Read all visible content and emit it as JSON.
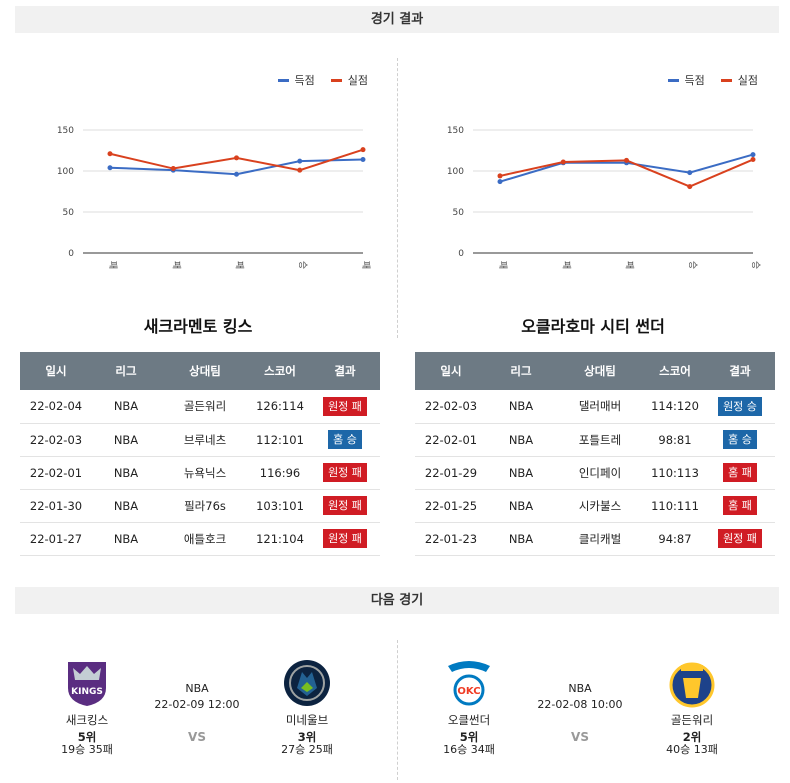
{
  "sections": {
    "results_title": "경기 결과",
    "next_title": "다음 경기"
  },
  "legend": {
    "scored": "득점",
    "allowed": "실점"
  },
  "colors": {
    "scored": "#3b6cc4",
    "allowed": "#d9411e",
    "win_badge": "#1d67a8",
    "loss_badge": "#d01c24",
    "header": "#6d7a84"
  },
  "table_headers": [
    "일시",
    "리그",
    "상대팀",
    "스코어",
    "결과"
  ],
  "left": {
    "team": "새크라멘토 킹스",
    "chart_data": {
      "type": "line",
      "categories": [
        "패",
        "패",
        "패",
        "승",
        "패"
      ],
      "series": [
        {
          "name": "득점",
          "values": [
            104,
            101,
            96,
            112,
            114
          ]
        },
        {
          "name": "실점",
          "values": [
            121,
            103,
            116,
            101,
            126
          ]
        }
      ],
      "yticks": [
        0,
        50,
        100,
        150
      ],
      "ylim": [
        0,
        150
      ]
    },
    "rows": [
      {
        "date": "22-02-04",
        "league": "NBA",
        "opponent": "골든워리",
        "score": "126:114",
        "result": "원정 패",
        "win": false
      },
      {
        "date": "22-02-03",
        "league": "NBA",
        "opponent": "브루네츠",
        "score": "112:101",
        "result": "홈 승",
        "win": true
      },
      {
        "date": "22-02-01",
        "league": "NBA",
        "opponent": "뉴욕닉스",
        "score": "116:96",
        "result": "원정 패",
        "win": false
      },
      {
        "date": "22-01-30",
        "league": "NBA",
        "opponent": "필라76s",
        "score": "103:101",
        "result": "원정 패",
        "win": false
      },
      {
        "date": "22-01-27",
        "league": "NBA",
        "opponent": "애틀호크",
        "score": "121:104",
        "result": "원정 패",
        "win": false
      }
    ]
  },
  "right": {
    "team": "오클라호마 시티 썬더",
    "chart_data": {
      "type": "line",
      "categories": [
        "패",
        "패",
        "패",
        "승",
        "승"
      ],
      "series": [
        {
          "name": "득점",
          "values": [
            87,
            110,
            110,
            98,
            120
          ]
        },
        {
          "name": "실점",
          "values": [
            94,
            111,
            113,
            81,
            114
          ]
        }
      ],
      "yticks": [
        0,
        50,
        100,
        150
      ],
      "ylim": [
        0,
        150
      ]
    },
    "rows": [
      {
        "date": "22-02-03",
        "league": "NBA",
        "opponent": "댈러매버",
        "score": "114:120",
        "result": "원정 승",
        "win": true
      },
      {
        "date": "22-02-01",
        "league": "NBA",
        "opponent": "포틀트레",
        "score": "98:81",
        "result": "홈 승",
        "win": true
      },
      {
        "date": "22-01-29",
        "league": "NBA",
        "opponent": "인디페이",
        "score": "110:113",
        "result": "홈 패",
        "win": false
      },
      {
        "date": "22-01-25",
        "league": "NBA",
        "opponent": "시카불스",
        "score": "110:111",
        "result": "홈 패",
        "win": false
      },
      {
        "date": "22-01-23",
        "league": "NBA",
        "opponent": "클리캐벌",
        "score": "94:87",
        "result": "원정 패",
        "win": false
      }
    ]
  },
  "next_games": [
    {
      "league": "NBA",
      "datetime": "22-02-09 12:00",
      "vs": "VS",
      "home": {
        "name": "새크킹스",
        "rank": "5위",
        "record": "19승 35패",
        "logo": "kings-logo",
        "color": "#5a2d81",
        "logo_text": "KINGS"
      },
      "away": {
        "name": "미네울브",
        "rank": "3위",
        "record": "27승 25패",
        "logo": "timberwolves-logo",
        "color": "#0c2340",
        "logo_text": ""
      }
    },
    {
      "league": "NBA",
      "datetime": "22-02-08 10:00",
      "vs": "VS",
      "home": {
        "name": "오클썬더",
        "rank": "5위",
        "record": "16승 34패",
        "logo": "thunder-logo",
        "color": "#007ac1",
        "logo_text": "OKC"
      },
      "away": {
        "name": "골든워리",
        "rank": "2위",
        "record": "40승 13패",
        "logo": "warriors-logo",
        "color": "#1d428a",
        "logo_text": ""
      }
    }
  ]
}
